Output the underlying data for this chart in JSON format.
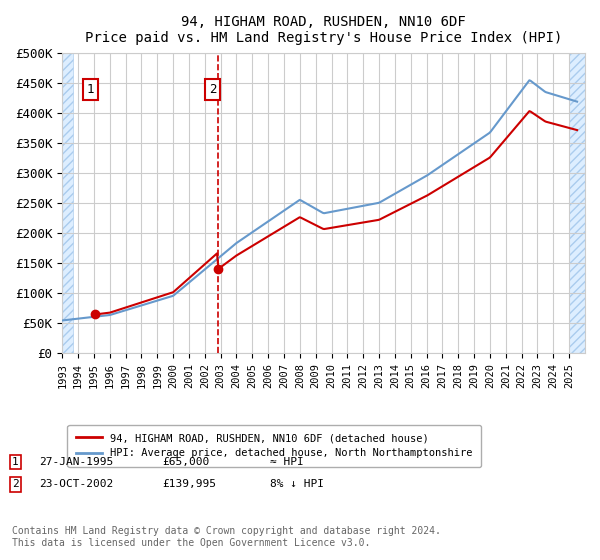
{
  "title": "94, HIGHAM ROAD, RUSHDEN, NN10 6DF",
  "subtitle": "Price paid vs. HM Land Registry's House Price Index (HPI)",
  "ylabel": "",
  "ylim": [
    0,
    500000
  ],
  "yticks": [
    0,
    50000,
    100000,
    150000,
    200000,
    250000,
    300000,
    350000,
    400000,
    450000,
    500000
  ],
  "ytick_labels": [
    "£0",
    "£50K",
    "£100K",
    "£150K",
    "£200K",
    "£250K",
    "£300K",
    "£350K",
    "£400K",
    "£450K",
    "£500K"
  ],
  "sale1_date": 1995.07,
  "sale1_price": 65000,
  "sale1_label": "1",
  "sale2_date": 2002.81,
  "sale2_price": 139995,
  "sale2_label": "2",
  "sale1_annotation": "1   27-JAN-1995   £65,000   ≈ HPI",
  "sale2_annotation": "2   23-OCT-2002   £139,995   8% ↓ HPI",
  "line_color_property": "#cc0000",
  "line_color_hpi": "#6699cc",
  "legend_property": "94, HIGHAM ROAD, RUSHDEN, NN10 6DF (detached house)",
  "legend_hpi": "HPI: Average price, detached house, North Northamptonshire",
  "footer": "Contains HM Land Registry data © Crown copyright and database right 2024.\nThis data is licensed under the Open Government Licence v3.0.",
  "hatch_color": "#cce0ff",
  "bg_hatch_color": "#e8f0fe",
  "xmin": 1993,
  "xmax": 2026
}
